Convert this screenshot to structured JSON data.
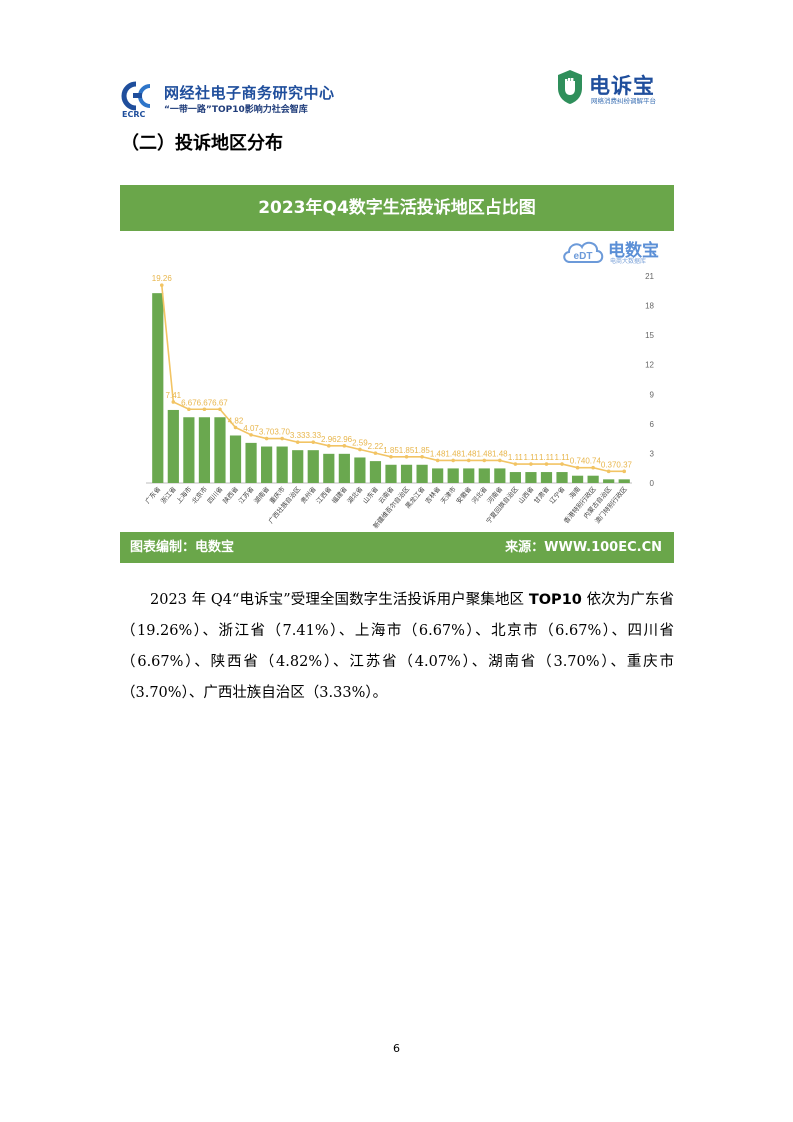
{
  "header": {
    "ecrc_title": "网经社电子商务研究中心",
    "ecrc_abbr": "ECRC",
    "ecrc_sub": "“一带一路”TOP10影响力社会智库",
    "dsb_title": "电诉宝",
    "dsb_sub": "网络消费纠纷调解平台"
  },
  "section_title": "（二）投诉地区分布",
  "chart_card": {
    "header_title": "2023年Q4数字生活投诉地区占比图",
    "watermark_brand": "电数宝",
    "watermark_logo_text": "eDT",
    "watermark_sub": "电商大数据库",
    "footer_left": "图表编制：电数宝",
    "footer_right": "来源：WWW.100EC.CN"
  },
  "chart_data": {
    "type": "bar",
    "title": "2023年Q4数字生活投诉地区占比图",
    "categories": [
      "广东省",
      "浙江省",
      "上海市",
      "北京市",
      "四川省",
      "陕西省",
      "江苏省",
      "湖南省",
      "重庆市",
      "广西壮族自治区",
      "贵州省",
      "江西省",
      "福建省",
      "湖北省",
      "山东省",
      "云南省",
      "新疆维吾尔自治区",
      "黑龙江省",
      "吉林省",
      "天津市",
      "安徽省",
      "河北省",
      "河南省",
      "宁夏回族自治区",
      "山西省",
      "甘肃省",
      "辽宁省",
      "海南",
      "香港特别行政区",
      "内蒙古自治区",
      "澳门特别行政区"
    ],
    "values": [
      19.26,
      7.41,
      6.67,
      6.67,
      6.67,
      4.82,
      4.07,
      3.7,
      3.7,
      3.33,
      3.33,
      2.96,
      2.96,
      2.59,
      2.22,
      1.85,
      1.85,
      1.85,
      1.48,
      1.48,
      1.48,
      1.48,
      1.48,
      1.11,
      1.11,
      1.11,
      1.11,
      0.74,
      0.74,
      0.37,
      0.37
    ],
    "value_labels": [
      "19.26",
      "7.41",
      "6.67",
      "6.67",
      "6.67",
      "4.82",
      "4.07",
      "3.70",
      "3.70",
      "3.33",
      "3.33",
      "2.96",
      "2.96",
      "2.59",
      "2.22",
      "1.85",
      "1.85",
      "1.85",
      "1.48",
      "1.48",
      "1.48",
      "1.48",
      "1.48",
      "1.11",
      "1.11",
      "1.11",
      "1.11",
      "0.74",
      "0.74",
      "0.37",
      "0.37"
    ],
    "ylim": [
      0,
      21
    ],
    "y_ticks": [
      "0",
      "3",
      "6",
      "9",
      "12",
      "15",
      "18",
      "21"
    ],
    "y_axis_side": "right",
    "series": [
      {
        "type": "bar",
        "color": "#6aa84f"
      },
      {
        "type": "line",
        "color": "#f2c464"
      }
    ],
    "grid": false,
    "legend": "none"
  },
  "paragraph": {
    "prefix": "2023 年 Q4“电诉宝”受理全国数字生活投诉用户聚集地区 ",
    "bold": "TOP10",
    "suffix": " 依次为广东省（19.26%）、浙江省（7.41%）、上海市（6.67%）、北京市（6.67%）、四川省（6.67%）、陕西省（4.82%）、江苏省（4.07%）、湖南省（3.70%）、重庆市（3.70%）、广西壮族自治区（3.33%）。"
  },
  "page_number": "6",
  "colors": {
    "brand_green": "#6aa64a",
    "bar_green": "#6aa84f",
    "line_gold": "#f2c464",
    "brand_blue": "#1f4e9c"
  }
}
